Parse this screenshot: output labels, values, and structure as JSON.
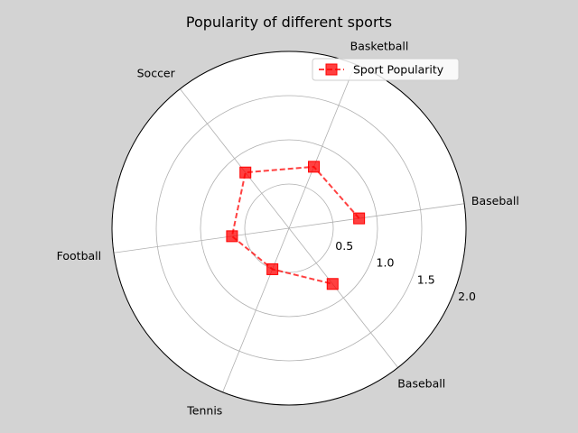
{
  "chart_data": {
    "type": "radar",
    "title": "Popularity of different sports",
    "categories": [
      "Baseball",
      "Basketball",
      "Soccer",
      "Football",
      "Tennis",
      "Baseball"
    ],
    "series": [
      {
        "name": "Sport Popularity",
        "values": [
          0.8,
          0.75,
          0.8,
          0.65,
          0.5,
          0.8
        ],
        "color": "#ff0000",
        "line_style": "dashed",
        "marker": "square"
      }
    ],
    "rlim": [
      0,
      2.0
    ],
    "r_ticks": [
      "0.5",
      "1.0",
      "1.5",
      "2.0"
    ],
    "grid": true,
    "legend_position": "top-right"
  },
  "colors": {
    "background": "#d3d3d3",
    "plot_background": "#ffffff",
    "grid": "#b0b0b0",
    "series": "#ff0000"
  }
}
